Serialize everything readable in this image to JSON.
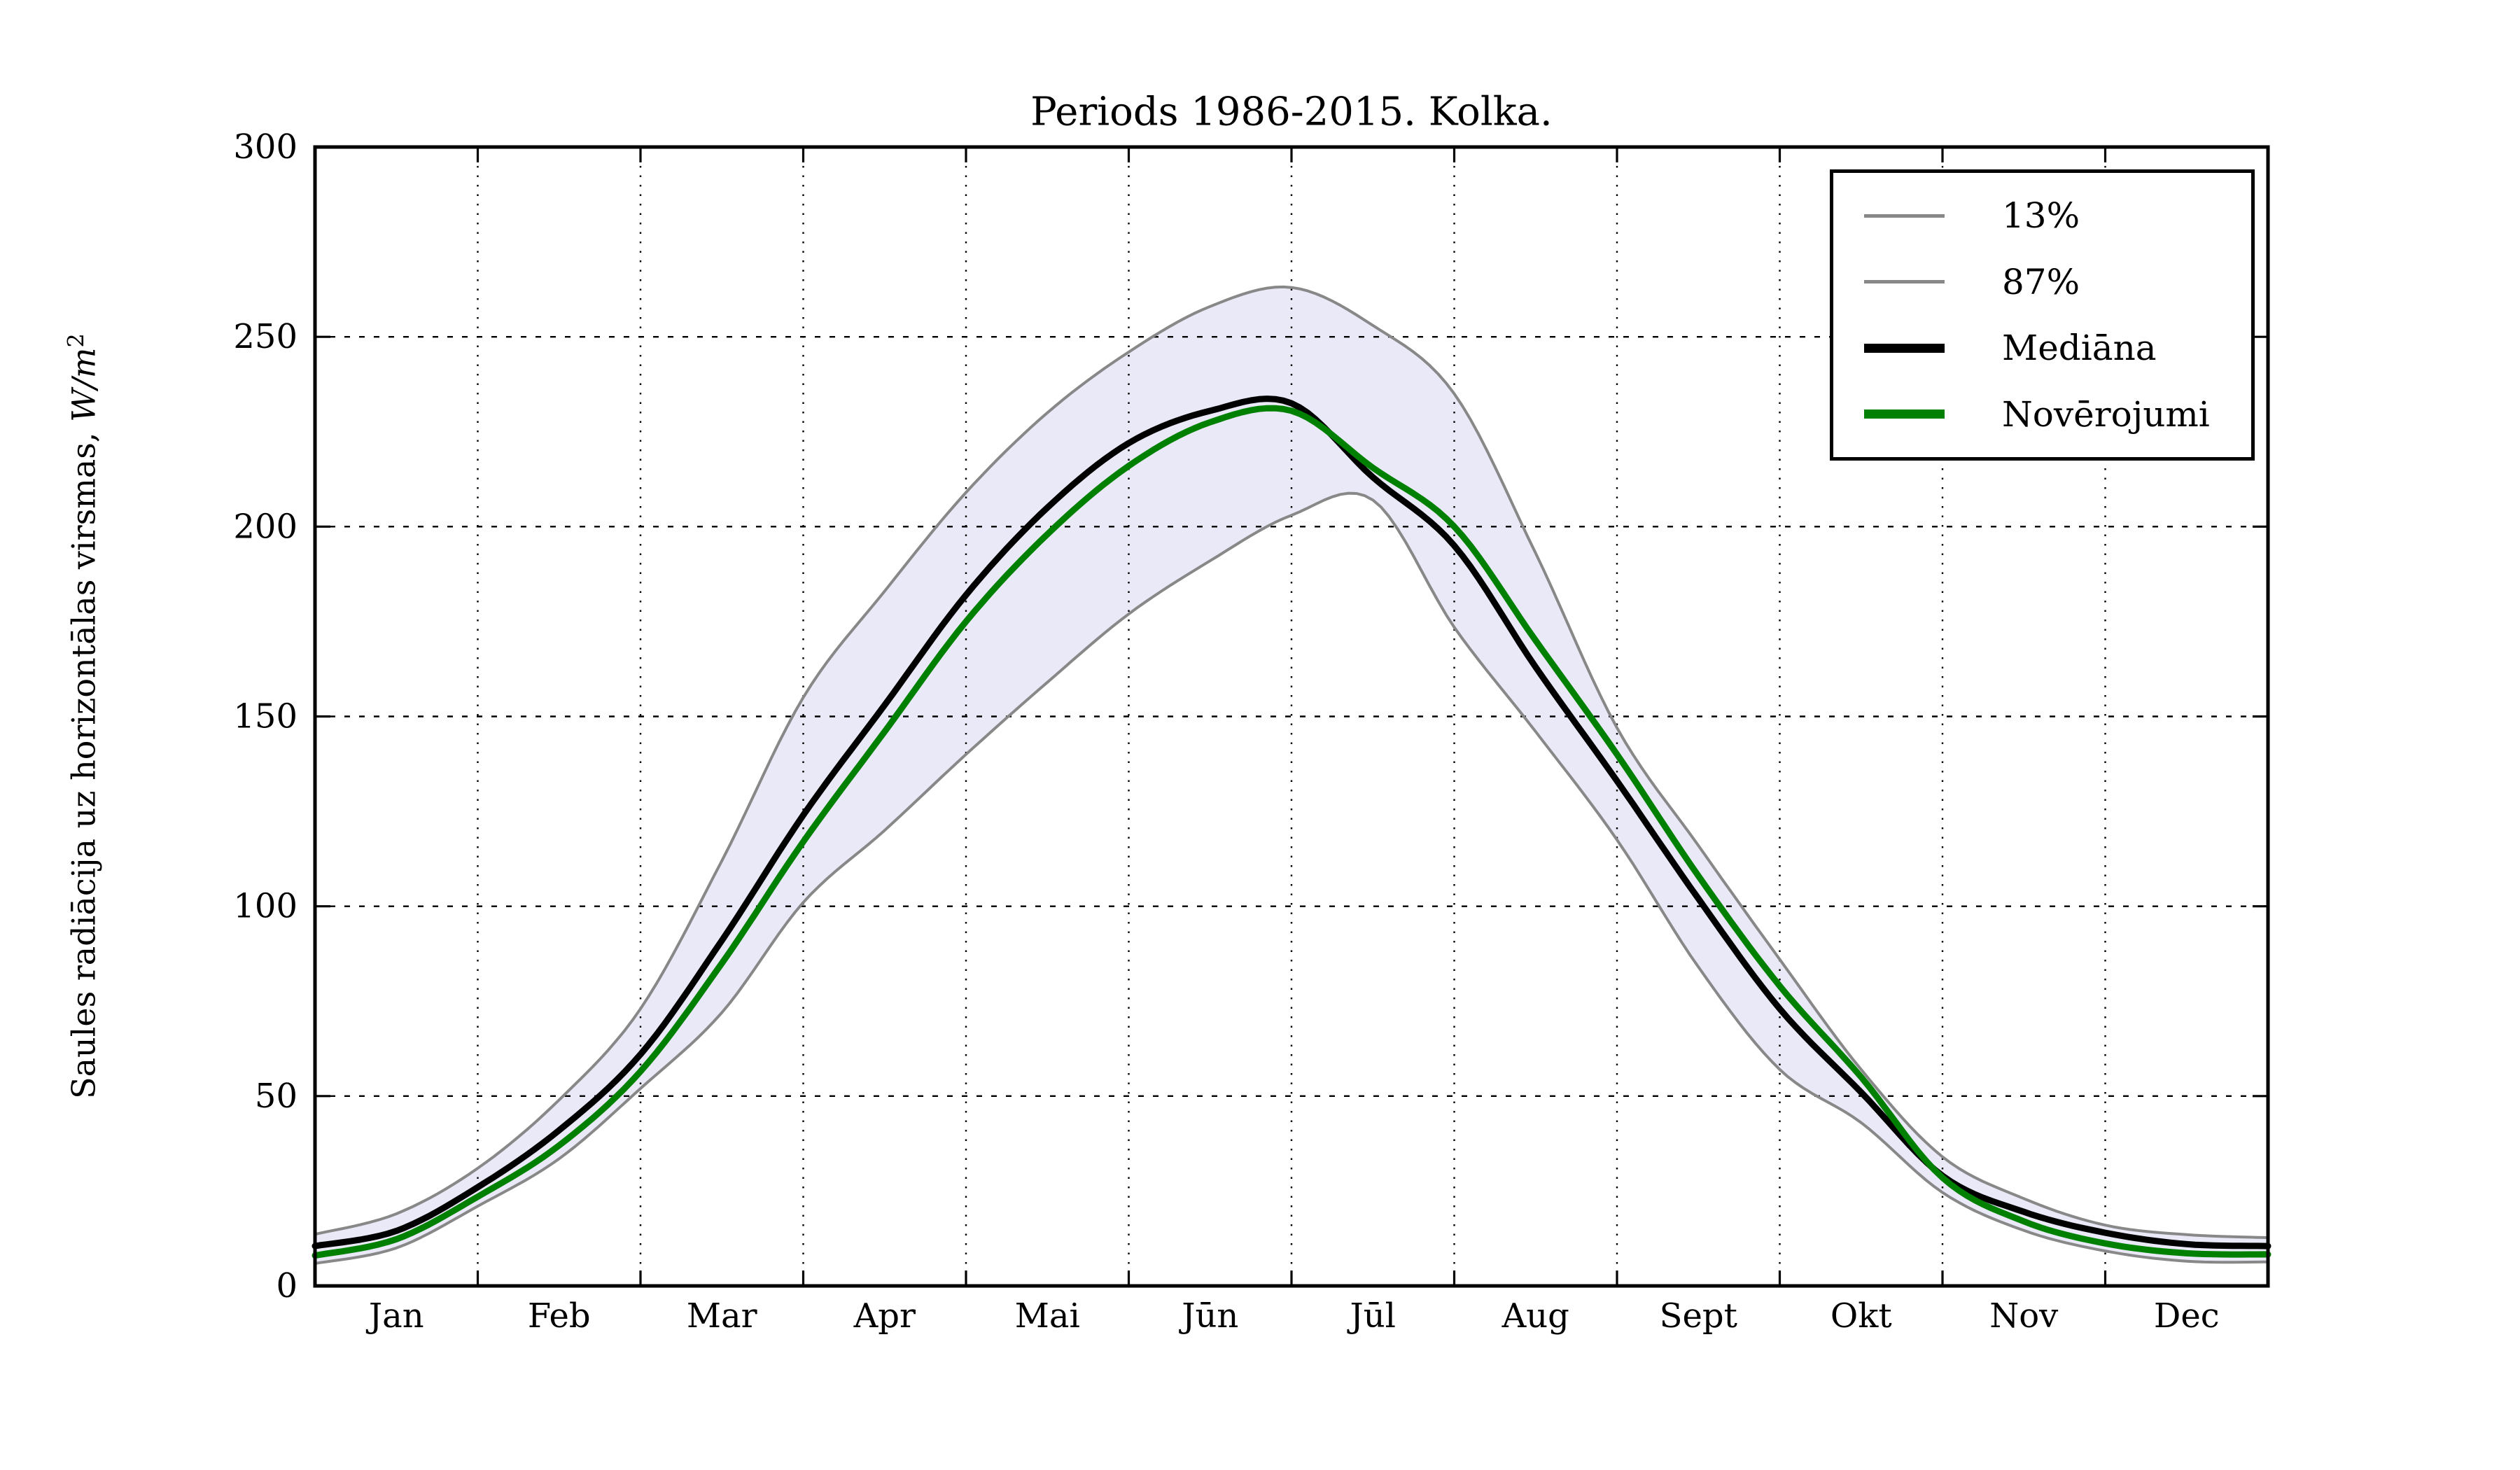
{
  "chart_data": {
    "type": "line",
    "title": "Periods 1986-2015. Kolka.",
    "ylabel_prefix": "Saules radiācija uz horizontālas virsmas, ",
    "ylabel_unit": "W/m",
    "ylabel_unit_exponent": "2",
    "xlabel": "",
    "ylim": [
      0,
      300
    ],
    "xlim_months": [
      0,
      12
    ],
    "y_ticks": [
      0,
      50,
      100,
      150,
      200,
      250,
      300
    ],
    "x_month_labels": [
      "Jan",
      "Feb",
      "Mar",
      "Apr",
      "Mai",
      "Jūn",
      "Jūl",
      "Aug",
      "Sept",
      "Okt",
      "Nov",
      "Dec"
    ],
    "grid": true,
    "legend_position": "upper right",
    "x_months": [
      0,
      0.5,
      1,
      1.5,
      2,
      2.5,
      3,
      3.5,
      4,
      4.5,
      5,
      5.5,
      6,
      6.5,
      7,
      7.5,
      8,
      8.5,
      9,
      9.5,
      10,
      10.5,
      11,
      11.5,
      12
    ],
    "series": [
      {
        "name": "13%",
        "role": "percentile-lower",
        "color": "#888888",
        "linewidth": 4,
        "values": [
          5.9,
          10,
          21,
          33.5,
          52,
          72,
          101,
          120,
          140,
          159,
          177,
          191,
          203,
          207,
          173.5,
          146,
          117.5,
          84,
          57,
          43,
          24.6,
          14.6,
          9.2,
          6.5,
          6.3
        ]
      },
      {
        "name": "87%",
        "role": "percentile-upper",
        "color": "#888888",
        "linewidth": 4,
        "values": [
          13.6,
          19,
          31,
          49,
          73,
          112,
          155,
          183,
          209,
          230,
          246,
          258,
          263,
          253,
          235,
          193,
          147,
          116,
          86,
          57,
          34,
          23,
          16,
          13.5,
          12.7
        ]
      },
      {
        "name": "Mediāna",
        "role": "median",
        "color": "#000000",
        "linewidth": 9,
        "values": [
          10.5,
          14.5,
          26,
          41,
          61,
          91,
          124,
          153,
          182,
          205,
          222,
          230.5,
          232.5,
          213,
          195,
          163,
          133,
          102,
          73,
          51,
          29,
          19.5,
          14,
          11,
          10.5
        ]
      },
      {
        "name": "Novērojumi",
        "role": "observations",
        "color": "#008000",
        "linewidth": 9,
        "values": [
          8,
          12.3,
          23.5,
          37,
          56.5,
          85,
          117,
          146,
          175,
          198,
          216,
          227.5,
          230.5,
          215.5,
          200,
          170,
          140,
          108,
          79,
          55,
          28.5,
          17,
          11.2,
          8.6,
          8.3
        ]
      }
    ],
    "band_fill_color": "#e9e9f8",
    "grid_color": "#000000",
    "axis_color": "#000000",
    "legend": {
      "items": [
        {
          "label": "13%",
          "color": "#888888",
          "sample_thickness": 5
        },
        {
          "label": "87%",
          "color": "#888888",
          "sample_thickness": 5
        },
        {
          "label": "Mediāna",
          "color": "#000000",
          "sample_thickness": 13
        },
        {
          "label": "Novērojumi",
          "color": "#008000",
          "sample_thickness": 13
        }
      ]
    }
  }
}
